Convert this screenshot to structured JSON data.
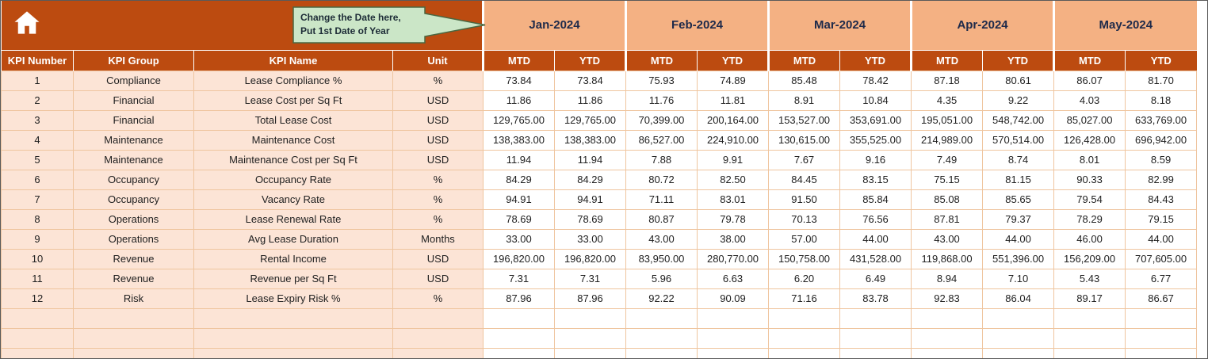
{
  "toolbar": {
    "home_icon": "home"
  },
  "callout": {
    "line1": "Change the Date here,",
    "line2": "Put 1st Date of Year"
  },
  "table": {
    "months": [
      "Jan-2024",
      "Feb-2024",
      "Mar-2024",
      "Apr-2024",
      "May-2024"
    ],
    "subheaders": [
      "MTD",
      "YTD"
    ],
    "columns": [
      "KPI Number",
      "KPI Group",
      "KPI Name",
      "Unit"
    ],
    "rows": [
      {
        "num": "1",
        "group": "Compliance",
        "name": "Lease Compliance %",
        "unit": "%",
        "values": [
          "73.84",
          "73.84",
          "75.93",
          "74.89",
          "85.48",
          "78.42",
          "87.18",
          "80.61",
          "86.07",
          "81.70"
        ]
      },
      {
        "num": "2",
        "group": "Financial",
        "name": "Lease Cost per Sq Ft",
        "unit": "USD",
        "values": [
          "11.86",
          "11.86",
          "11.76",
          "11.81",
          "8.91",
          "10.84",
          "4.35",
          "9.22",
          "4.03",
          "8.18"
        ]
      },
      {
        "num": "3",
        "group": "Financial",
        "name": "Total Lease Cost",
        "unit": "USD",
        "values": [
          "129,765.00",
          "129,765.00",
          "70,399.00",
          "200,164.00",
          "153,527.00",
          "353,691.00",
          "195,051.00",
          "548,742.00",
          "85,027.00",
          "633,769.00"
        ]
      },
      {
        "num": "4",
        "group": "Maintenance",
        "name": "Maintenance Cost",
        "unit": "USD",
        "values": [
          "138,383.00",
          "138,383.00",
          "86,527.00",
          "224,910.00",
          "130,615.00",
          "355,525.00",
          "214,989.00",
          "570,514.00",
          "126,428.00",
          "696,942.00"
        ]
      },
      {
        "num": "5",
        "group": "Maintenance",
        "name": "Maintenance Cost per Sq Ft",
        "unit": "USD",
        "values": [
          "11.94",
          "11.94",
          "7.88",
          "9.91",
          "7.67",
          "9.16",
          "7.49",
          "8.74",
          "8.01",
          "8.59"
        ]
      },
      {
        "num": "6",
        "group": "Occupancy",
        "name": "Occupancy Rate",
        "unit": "%",
        "values": [
          "84.29",
          "84.29",
          "80.72",
          "82.50",
          "84.45",
          "83.15",
          "75.15",
          "81.15",
          "90.33",
          "82.99"
        ]
      },
      {
        "num": "7",
        "group": "Occupancy",
        "name": "Vacancy Rate",
        "unit": "%",
        "values": [
          "94.91",
          "94.91",
          "71.11",
          "83.01",
          "91.50",
          "85.84",
          "85.08",
          "85.65",
          "79.54",
          "84.43"
        ]
      },
      {
        "num": "8",
        "group": "Operations",
        "name": "Lease Renewal Rate",
        "unit": "%",
        "values": [
          "78.69",
          "78.69",
          "80.87",
          "79.78",
          "70.13",
          "76.56",
          "87.81",
          "79.37",
          "78.29",
          "79.15"
        ]
      },
      {
        "num": "9",
        "group": "Operations",
        "name": "Avg Lease Duration",
        "unit": "Months",
        "values": [
          "33.00",
          "33.00",
          "43.00",
          "38.00",
          "57.00",
          "44.00",
          "43.00",
          "44.00",
          "46.00",
          "44.00"
        ]
      },
      {
        "num": "10",
        "group": "Revenue",
        "name": "Rental Income",
        "unit": "USD",
        "values": [
          "196,820.00",
          "196,820.00",
          "83,950.00",
          "280,770.00",
          "150,758.00",
          "431,528.00",
          "119,868.00",
          "551,396.00",
          "156,209.00",
          "707,605.00"
        ]
      },
      {
        "num": "11",
        "group": "Revenue",
        "name": "Revenue per Sq Ft",
        "unit": "USD",
        "values": [
          "7.31",
          "7.31",
          "5.96",
          "6.63",
          "6.20",
          "6.49",
          "8.94",
          "7.10",
          "5.43",
          "6.77"
        ]
      },
      {
        "num": "12",
        "group": "Risk",
        "name": "Lease Expiry Risk %",
        "unit": "%",
        "values": [
          "87.96",
          "87.96",
          "92.22",
          "90.09",
          "71.16",
          "83.78",
          "92.83",
          "86.04",
          "89.17",
          "86.67"
        ]
      }
    ],
    "empty_rows": 3
  },
  "colors": {
    "header_rust": "#BC4B10",
    "month_salmon": "#F4B183",
    "left_peach": "#FCE4D6",
    "gridline": "#EFC59F",
    "callout_green": "#CBE6C7",
    "callout_border": "#4A6741"
  }
}
